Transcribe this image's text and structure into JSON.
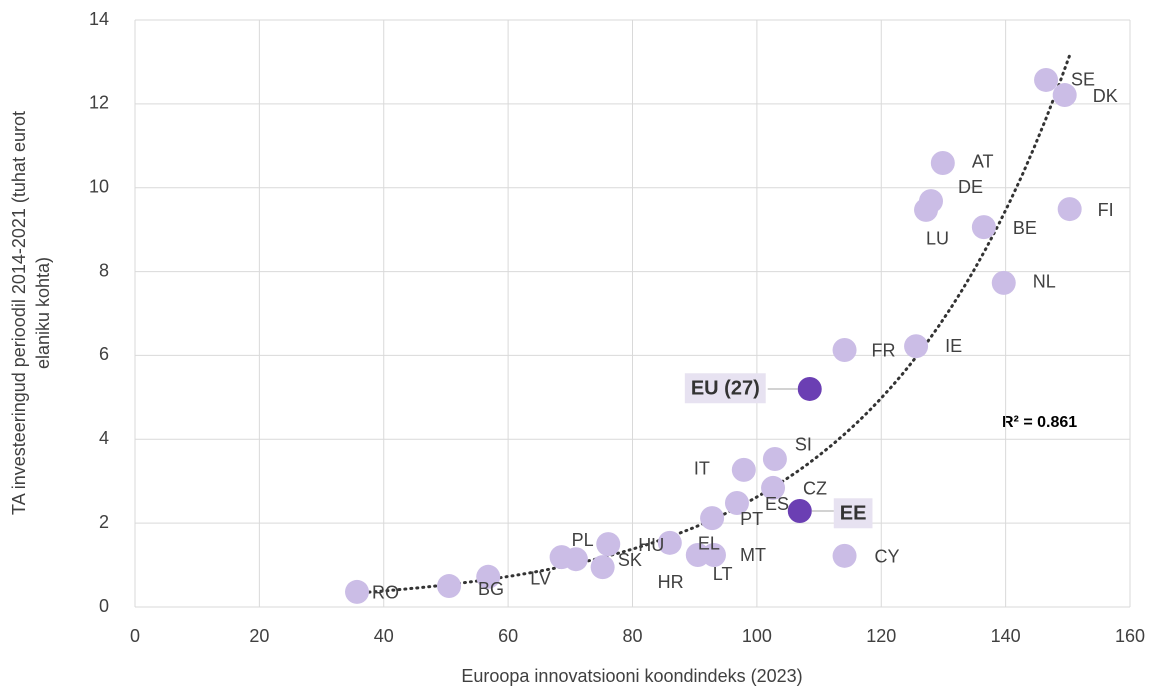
{
  "chart_data": {
    "type": "scatter",
    "xlabel": "Euroopa innovatsiooni koondindeks (2023)",
    "ylabel": [
      "TA investeeringud perioodil 2014-2021 (tuhat eurot",
      "elaniku kohta)"
    ],
    "annotation": "R² = 0.861",
    "color": "#cbbde6",
    "highlight_color": "#6b3fb3",
    "trend_color": "#333333",
    "xlim": [
      0,
      160
    ],
    "xticks": [
      0,
      20,
      40,
      60,
      80,
      100,
      120,
      140,
      160
    ],
    "ylim": [
      0,
      14
    ],
    "yticks": [
      0,
      2,
      4,
      6,
      8,
      10,
      12,
      14
    ],
    "grid": true,
    "points": [
      {
        "label": "RO",
        "x": 35.7,
        "y": 0.36
      },
      {
        "label": "BG",
        "x": 50.5,
        "y": 0.5
      },
      {
        "label": "LV",
        "x": 56.8,
        "y": 0.72
      },
      {
        "label": "PL",
        "x": 68.6,
        "y": 1.19
      },
      {
        "label": "SK",
        "x": 70.9,
        "y": 1.14
      },
      {
        "label": "HR",
        "x": 75.2,
        "y": 0.95
      },
      {
        "label": "HU",
        "x": 76.1,
        "y": 1.5
      },
      {
        "label": "EL",
        "x": 86.0,
        "y": 1.53
      },
      {
        "label": "LT",
        "x": 90.5,
        "y": 1.24
      },
      {
        "label": "MT",
        "x": 93.1,
        "y": 1.24
      },
      {
        "label": "PT",
        "x": 92.8,
        "y": 2.12
      },
      {
        "label": "ES",
        "x": 96.8,
        "y": 2.48
      },
      {
        "label": "CZ",
        "x": 102.6,
        "y": 2.84
      },
      {
        "label": "IT",
        "x": 97.9,
        "y": 3.27
      },
      {
        "label": "SI",
        "x": 102.9,
        "y": 3.53
      },
      {
        "label": "EE",
        "x": 106.9,
        "y": 2.29,
        "highlight": true
      },
      {
        "label": "CY",
        "x": 114.1,
        "y": 1.22
      },
      {
        "label": "EU (27)",
        "x": 108.5,
        "y": 5.2,
        "highlight": true
      },
      {
        "label": "FR",
        "x": 114.1,
        "y": 6.13
      },
      {
        "label": "IE",
        "x": 125.6,
        "y": 6.22
      },
      {
        "label": "NL",
        "x": 139.7,
        "y": 7.73
      },
      {
        "label": "BE",
        "x": 136.5,
        "y": 9.06
      },
      {
        "label": "LU",
        "x": 127.2,
        "y": 9.47
      },
      {
        "label": "DE",
        "x": 128.0,
        "y": 9.68
      },
      {
        "label": "AT",
        "x": 129.9,
        "y": 10.59
      },
      {
        "label": "FI",
        "x": 150.3,
        "y": 9.49
      },
      {
        "label": "SE",
        "x": 146.5,
        "y": 12.57
      },
      {
        "label": "DK",
        "x": 149.5,
        "y": 12.21
      }
    ]
  }
}
